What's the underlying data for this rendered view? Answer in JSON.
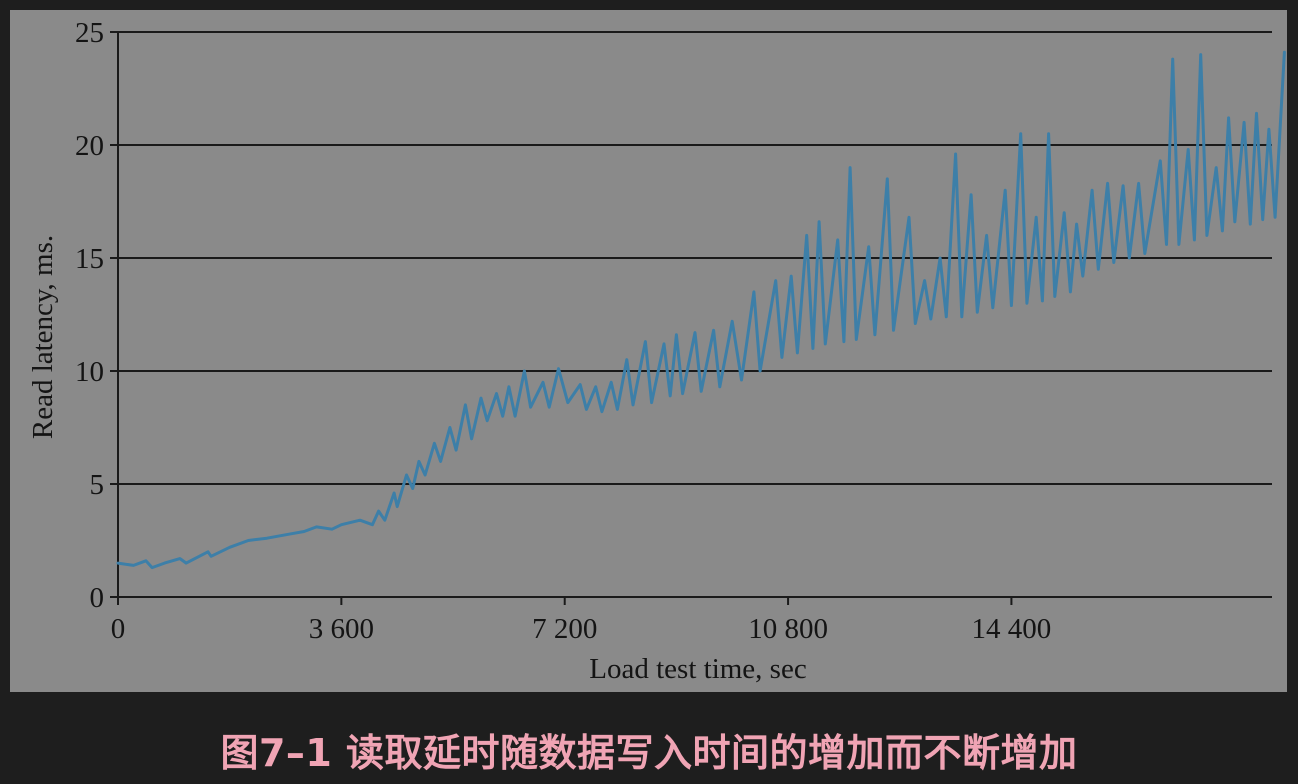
{
  "caption": "图7–1 读取延时随数据写入时间的增加而不断增加",
  "colors": {
    "page_background": "#1e1e1e",
    "plot_background": "#8a8a8a",
    "gridline": "#1a1a1a",
    "series_line": "#3d7fa8",
    "caption": "#f0a4b4"
  },
  "chart_data": {
    "type": "line",
    "title": "",
    "xlabel": "Load test time, sec",
    "ylabel": "Read latency, ms.",
    "xlim": [
      0,
      18600
    ],
    "ylim": [
      0,
      25
    ],
    "x_ticks": [
      0,
      3600,
      7200,
      10800,
      14400
    ],
    "x_tick_labels": [
      "0",
      "3 600",
      "7 200",
      "10 800",
      "14 400"
    ],
    "y_ticks": [
      0,
      5,
      10,
      15,
      20,
      25
    ],
    "y_tick_labels": [
      "0",
      "5",
      "10",
      "15",
      "20",
      "25"
    ],
    "grid": "horizontal",
    "legend": "none",
    "series": [
      {
        "values_description": "read latency in ms over time, sawtooth pattern",
        "points": [
          [
            0,
            1.5
          ],
          [
            250,
            1.4
          ],
          [
            450,
            1.6
          ],
          [
            550,
            1.3
          ],
          [
            750,
            1.5
          ],
          [
            1000,
            1.7
          ],
          [
            1100,
            1.5
          ],
          [
            1450,
            2.0
          ],
          [
            1500,
            1.8
          ],
          [
            1800,
            2.2
          ],
          [
            2100,
            2.5
          ],
          [
            2400,
            2.6
          ],
          [
            2800,
            2.8
          ],
          [
            3000,
            2.9
          ],
          [
            3200,
            3.1
          ],
          [
            3450,
            3.0
          ],
          [
            3600,
            3.2
          ],
          [
            3900,
            3.4
          ],
          [
            4100,
            3.2
          ],
          [
            4200,
            3.8
          ],
          [
            4300,
            3.4
          ],
          [
            4450,
            4.6
          ],
          [
            4500,
            4.0
          ],
          [
            4650,
            5.4
          ],
          [
            4750,
            4.8
          ],
          [
            4850,
            6.0
          ],
          [
            4950,
            5.4
          ],
          [
            5100,
            6.8
          ],
          [
            5200,
            6.0
          ],
          [
            5350,
            7.5
          ],
          [
            5450,
            6.5
          ],
          [
            5600,
            8.5
          ],
          [
            5700,
            7.0
          ],
          [
            5850,
            8.8
          ],
          [
            5950,
            7.8
          ],
          [
            6100,
            9.0
          ],
          [
            6200,
            8.0
          ],
          [
            6300,
            9.3
          ],
          [
            6400,
            8.0
          ],
          [
            6550,
            10.0
          ],
          [
            6650,
            8.4
          ],
          [
            6850,
            9.5
          ],
          [
            6950,
            8.4
          ],
          [
            7100,
            10.1
          ],
          [
            7250,
            8.6
          ],
          [
            7450,
            9.4
          ],
          [
            7550,
            8.3
          ],
          [
            7700,
            9.3
          ],
          [
            7800,
            8.2
          ],
          [
            7950,
            9.5
          ],
          [
            8050,
            8.3
          ],
          [
            8200,
            10.5
          ],
          [
            8300,
            8.5
          ],
          [
            8500,
            11.3
          ],
          [
            8600,
            8.6
          ],
          [
            8800,
            11.2
          ],
          [
            8900,
            8.9
          ],
          [
            9000,
            11.6
          ],
          [
            9100,
            9.0
          ],
          [
            9300,
            11.7
          ],
          [
            9400,
            9.1
          ],
          [
            9600,
            11.8
          ],
          [
            9700,
            9.3
          ],
          [
            9900,
            12.2
          ],
          [
            10050,
            9.6
          ],
          [
            10250,
            13.5
          ],
          [
            10350,
            10.0
          ],
          [
            10600,
            14.0
          ],
          [
            10700,
            10.6
          ],
          [
            10850,
            14.2
          ],
          [
            10950,
            10.8
          ],
          [
            11100,
            16.0
          ],
          [
            11200,
            11.0
          ],
          [
            11300,
            16.6
          ],
          [
            11400,
            11.2
          ],
          [
            11600,
            15.8
          ],
          [
            11700,
            11.3
          ],
          [
            11800,
            19.0
          ],
          [
            11900,
            11.4
          ],
          [
            12100,
            15.5
          ],
          [
            12200,
            11.6
          ],
          [
            12400,
            18.5
          ],
          [
            12500,
            11.8
          ],
          [
            12750,
            16.8
          ],
          [
            12850,
            12.1
          ],
          [
            13000,
            14.0
          ],
          [
            13100,
            12.3
          ],
          [
            13250,
            15.0
          ],
          [
            13350,
            12.4
          ],
          [
            13500,
            19.6
          ],
          [
            13600,
            12.4
          ],
          [
            13750,
            17.8
          ],
          [
            13850,
            12.6
          ],
          [
            14000,
            16.0
          ],
          [
            14100,
            12.8
          ],
          [
            14300,
            18.0
          ],
          [
            14400,
            12.9
          ],
          [
            14550,
            20.5
          ],
          [
            14650,
            13.0
          ],
          [
            14800,
            16.8
          ],
          [
            14900,
            13.1
          ],
          [
            15000,
            20.5
          ],
          [
            15100,
            13.3
          ],
          [
            15250,
            17.0
          ],
          [
            15350,
            13.5
          ],
          [
            15450,
            16.5
          ],
          [
            15550,
            14.2
          ],
          [
            15700,
            18.0
          ],
          [
            15800,
            14.5
          ],
          [
            15950,
            18.3
          ],
          [
            16050,
            14.8
          ],
          [
            16200,
            18.2
          ],
          [
            16300,
            15.0
          ],
          [
            16450,
            18.3
          ],
          [
            16550,
            15.2
          ],
          [
            16800,
            19.3
          ],
          [
            16900,
            15.6
          ],
          [
            17000,
            23.8
          ],
          [
            17100,
            15.6
          ],
          [
            17250,
            19.8
          ],
          [
            17350,
            15.8
          ],
          [
            17450,
            24.0
          ],
          [
            17550,
            16.0
          ],
          [
            17700,
            19.0
          ],
          [
            17800,
            16.2
          ],
          [
            17900,
            21.2
          ],
          [
            18000,
            16.6
          ],
          [
            18150,
            21.0
          ],
          [
            18250,
            16.5
          ],
          [
            18350,
            21.4
          ],
          [
            18450,
            16.7
          ],
          [
            18550,
            20.7
          ],
          [
            18650,
            16.8
          ],
          [
            18800,
            24.1
          ]
        ]
      }
    ]
  }
}
